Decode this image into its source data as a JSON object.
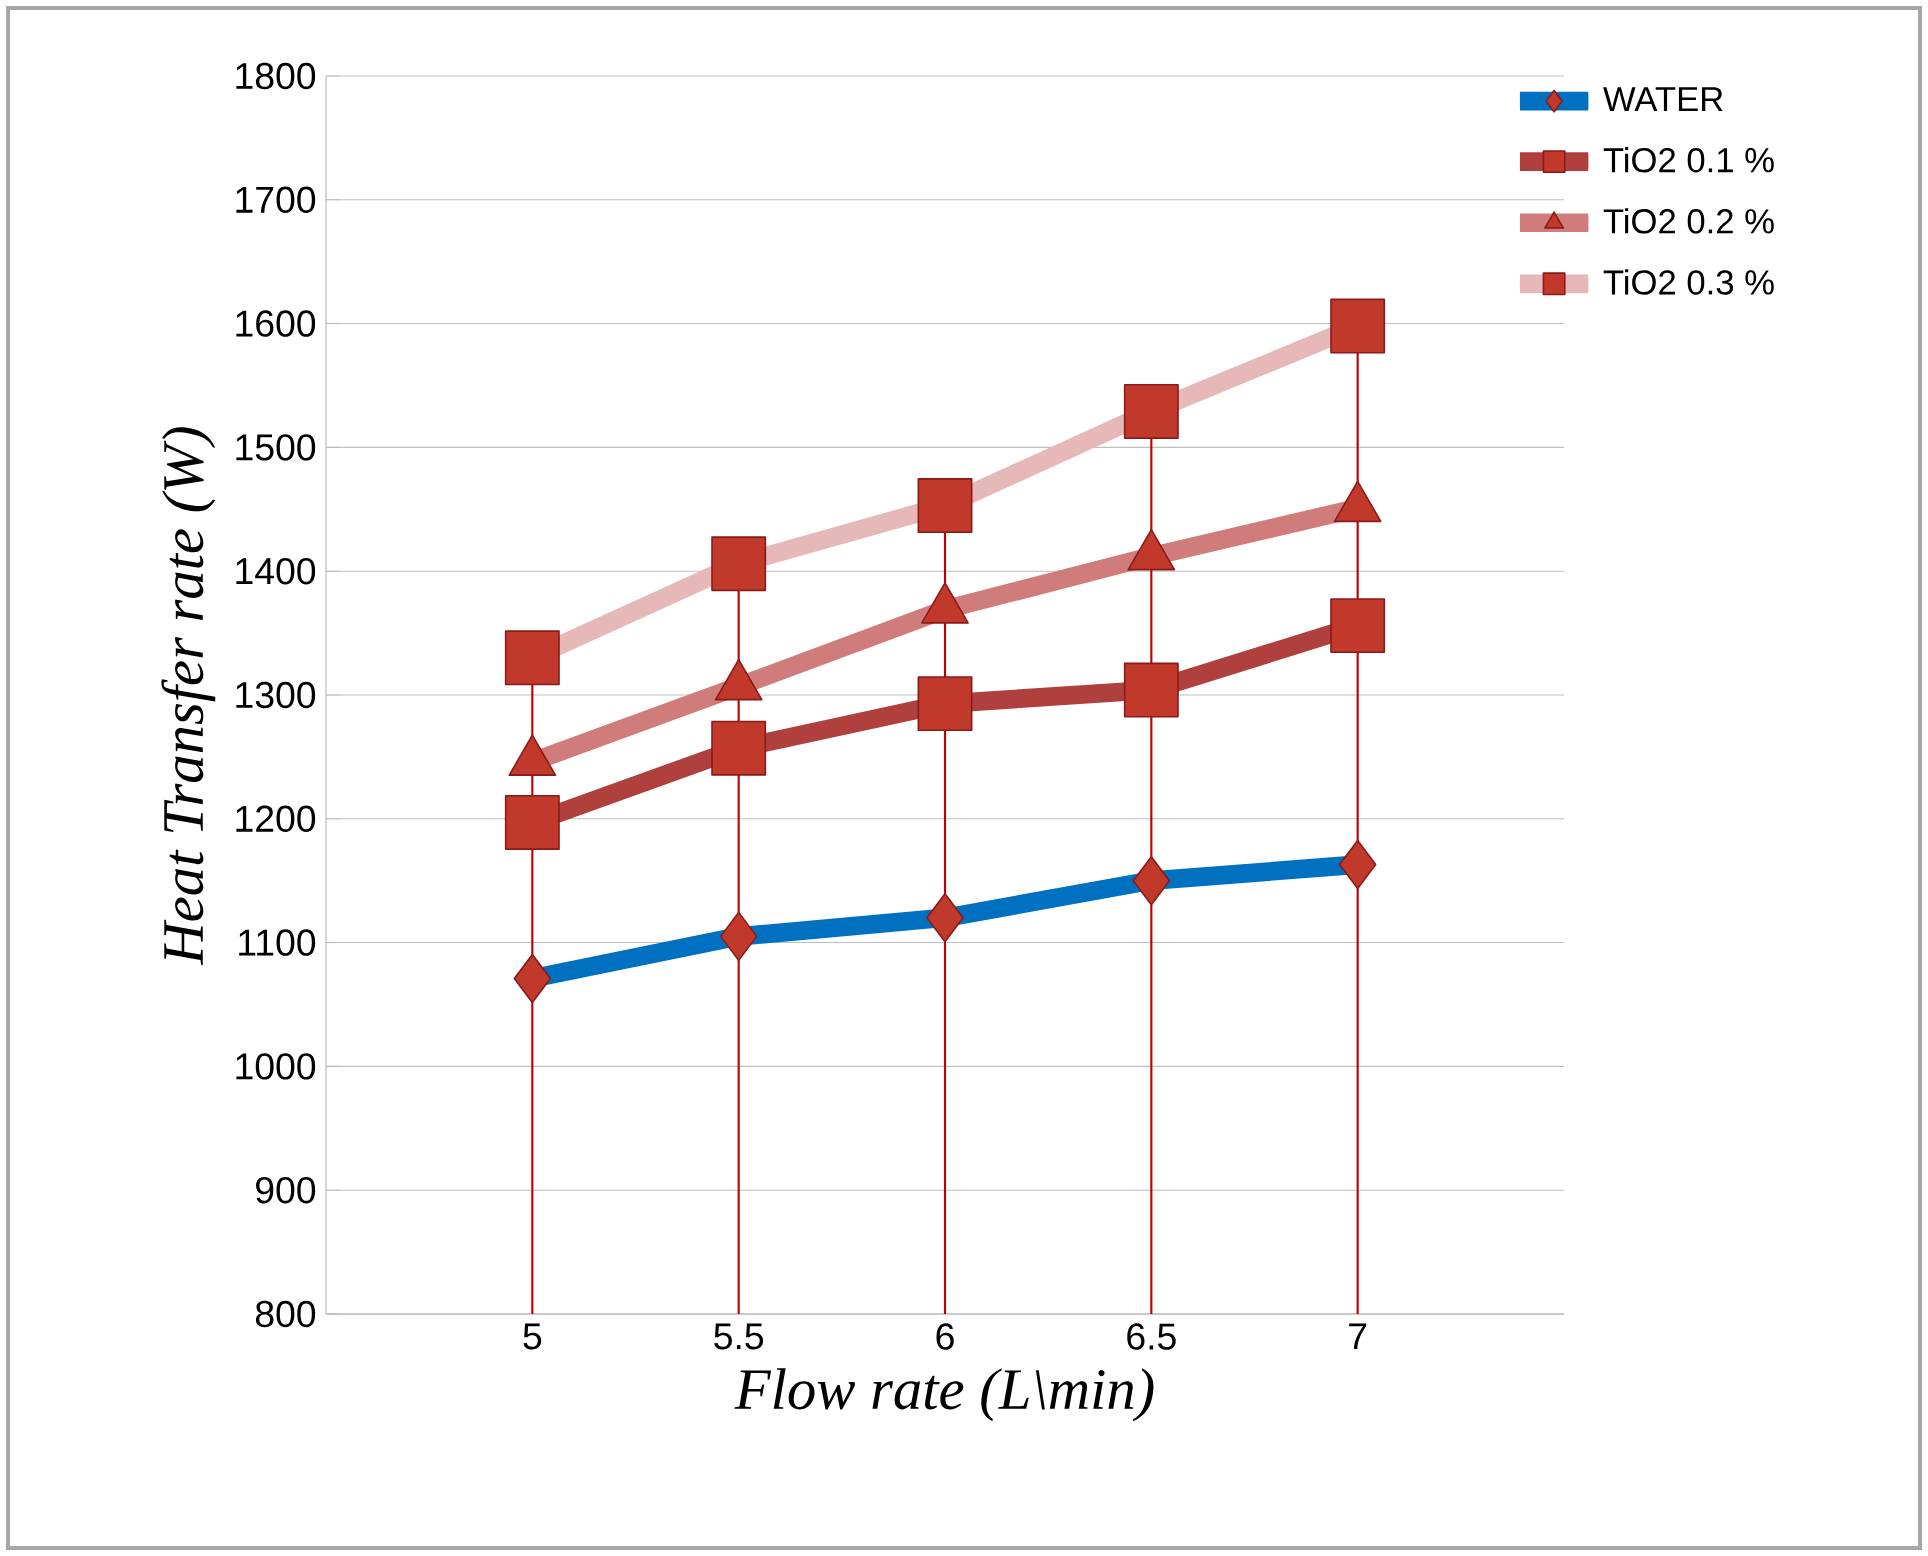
{
  "chart_data": {
    "type": "line",
    "xlabel": "Flow rate (L\\min)",
    "ylabel": "Heat Transfer rate (W)",
    "x": [
      5,
      5.5,
      6,
      6.5,
      7
    ],
    "series": [
      {
        "name": "WATER",
        "color": "#0070c0",
        "marker": "diamond",
        "values": [
          1071,
          1105,
          1120,
          1150,
          1163
        ]
      },
      {
        "name": "TiO2 0.1 %",
        "color": "#b0403d",
        "marker": "square",
        "values": [
          1197,
          1257,
          1293,
          1304,
          1356
        ]
      },
      {
        "name": "TiO2 0.2 %",
        "color": "#d07c7a",
        "marker": "triangle",
        "values": [
          1246,
          1307,
          1369,
          1412,
          1451
        ]
      },
      {
        "name": "TiO2 0.3 %",
        "color": "#e6b9b8",
        "marker": "square",
        "values": [
          1330,
          1406,
          1453,
          1529,
          1598
        ]
      }
    ],
    "xlim": [
      4.5,
      7.5
    ],
    "xticks": [
      5,
      5.5,
      6,
      6.5,
      7
    ],
    "ylim": [
      800,
      1800
    ],
    "yticks": [
      800,
      900,
      1000,
      1100,
      1200,
      1300,
      1400,
      1500,
      1600,
      1700,
      1800
    ],
    "grid": "y",
    "legend": "right",
    "ref_lines": [
      {
        "axis": "x",
        "value": 5,
        "color": "#c00000"
      },
      {
        "axis": "x",
        "value": 5.5,
        "color": "#c00000"
      },
      {
        "axis": "x",
        "value": 6,
        "color": "#c00000"
      },
      {
        "axis": "x",
        "value": 6.5,
        "color": "#c00000"
      },
      {
        "axis": "x",
        "value": 7,
        "color": "#c00000"
      }
    ]
  }
}
